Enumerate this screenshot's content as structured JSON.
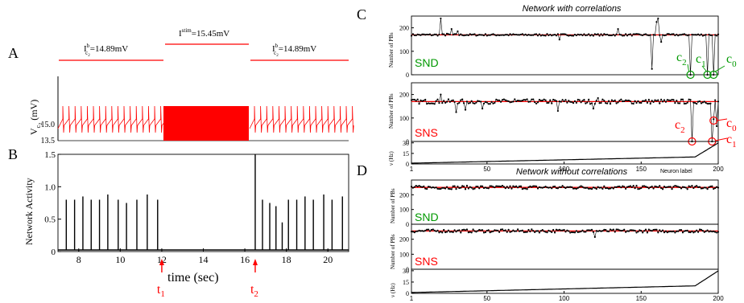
{
  "panel_labels": {
    "a": "A",
    "b": "B",
    "c": "C",
    "d": "D"
  },
  "panel_a": {
    "stim_left": {
      "base": "I",
      "sup": "b",
      "sub": "c",
      "sub2": "2",
      "rest": "=14.89mV"
    },
    "stim_mid": {
      "base": "I",
      "sup": "stim",
      "rest": "=15.45mV"
    },
    "stim_right": {
      "base": "I",
      "sup": "b",
      "sub": "c",
      "sub2": "2",
      "rest": "=14.89mV"
    },
    "ylabel": {
      "base": "V",
      "sub": "c",
      "sub2": "2",
      "rest": " (mV)"
    },
    "yticks": [
      "15.0",
      "13.5"
    ],
    "trace_color": "#ff0000"
  },
  "panel_b": {
    "ylabel": "Network Activity",
    "xlabel": "time (sec)",
    "yticks": [
      "0",
      "0.5",
      "1.0",
      "1.5"
    ],
    "xticks": [
      "8",
      "10",
      "12",
      "14",
      "16",
      "18",
      "20"
    ],
    "markers": [
      {
        "base": "t",
        "sub": "1",
        "time": 12.0
      },
      {
        "base": "t",
        "sub": "2",
        "time": 16.5
      }
    ],
    "marker_color": "#ff0000",
    "chart_data": {
      "type": "line",
      "xlim": [
        7,
        21
      ],
      "ylim": [
        0,
        1.5
      ],
      "pulses": [
        {
          "t": 7.4,
          "h": 0.8
        },
        {
          "t": 7.8,
          "h": 0.8
        },
        {
          "t": 8.2,
          "h": 0.85
        },
        {
          "t": 8.6,
          "h": 0.8
        },
        {
          "t": 9.0,
          "h": 0.8
        },
        {
          "t": 9.4,
          "h": 0.88
        },
        {
          "t": 9.9,
          "h": 0.8
        },
        {
          "t": 10.3,
          "h": 0.75
        },
        {
          "t": 10.8,
          "h": 0.8
        },
        {
          "t": 11.3,
          "h": 0.88
        },
        {
          "t": 11.8,
          "h": 0.8
        },
        {
          "t": 16.5,
          "h": 1.5
        },
        {
          "t": 16.85,
          "h": 0.8
        },
        {
          "t": 17.2,
          "h": 0.75
        },
        {
          "t": 17.5,
          "h": 0.7
        },
        {
          "t": 17.8,
          "h": 0.45
        },
        {
          "t": 18.1,
          "h": 0.8
        },
        {
          "t": 18.5,
          "h": 0.8
        },
        {
          "t": 18.9,
          "h": 0.85
        },
        {
          "t": 19.3,
          "h": 0.8
        },
        {
          "t": 19.8,
          "h": 0.88
        },
        {
          "t": 20.2,
          "h": 0.8
        },
        {
          "t": 20.7,
          "h": 0.85
        }
      ]
    }
  },
  "panel_c": {
    "title": "Network with correlations",
    "ylabel_pbs": "Number of PBs",
    "ylabel_nu": {
      "base": "ν",
      "rest": " (Hz)"
    },
    "snd": "SND",
    "sns": "SNS",
    "snd_color": "#009900",
    "sns_color": "#ff0000",
    "yticks_pbs": [
      "0",
      "100",
      "200"
    ],
    "yticks_nu": [
      "0",
      "15",
      "30"
    ],
    "xticks": [
      "1",
      "50",
      "100",
      "150",
      "200"
    ],
    "neuron_label": "Neuron label",
    "snd_labels": [
      {
        "base": "c",
        "sub": "2"
      },
      {
        "base": "c",
        "sub": "1"
      },
      {
        "base": "c",
        "sub": "0"
      }
    ],
    "sns_labels": [
      {
        "base": "c",
        "sub": "2"
      },
      {
        "base": "c",
        "sub": "0"
      },
      {
        "base": "c",
        "sub": "1"
      }
    ]
  },
  "panel_d": {
    "title": "Network without correlations",
    "ylabel_pbs": "Number of PBs",
    "ylabel_nu": {
      "base": "ν",
      "rest": " (Hz)"
    },
    "snd": "SND",
    "sns": "SNS",
    "yticks_pbs_top": [
      "0",
      "100",
      "200"
    ],
    "yticks_pbs_bot": [
      "200",
      "100",
      "0"
    ],
    "yticks_nu": [
      "0",
      "15",
      "30"
    ],
    "xticks": [
      "1",
      "50",
      "100",
      "150",
      "200"
    ]
  },
  "fit_line_color": "#ff0000",
  "marker_color": "#000000"
}
